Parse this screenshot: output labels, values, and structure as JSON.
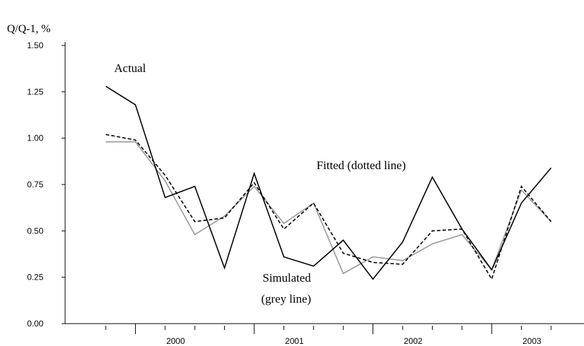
{
  "chart_data": {
    "type": "line",
    "y_label": "Q/Q-1, %",
    "categories": [
      null,
      null,
      "2000",
      null,
      null,
      null,
      "2001",
      null,
      null,
      null,
      "2002",
      null,
      null,
      null,
      "2003",
      null
    ],
    "series": [
      {
        "name": "Actual",
        "color": "#000000",
        "dash": "solid",
        "values": [
          1.28,
          1.18,
          0.68,
          0.74,
          0.3,
          0.81,
          0.36,
          0.31,
          0.45,
          0.24,
          0.44,
          0.79,
          0.51,
          0.29,
          0.65,
          0.84
        ]
      },
      {
        "name": "Fitted (dotted line)",
        "color": "#000000",
        "dash": "dashed",
        "values": [
          1.02,
          0.99,
          0.8,
          0.55,
          0.57,
          0.76,
          0.51,
          0.65,
          0.38,
          0.33,
          0.32,
          0.5,
          0.51,
          0.24,
          0.74,
          0.55
        ]
      },
      {
        "name": "Simulated",
        "color": "#999999",
        "dash": "solid",
        "values": [
          0.98,
          0.98,
          0.77,
          0.48,
          0.58,
          0.74,
          0.54,
          0.65,
          0.27,
          0.36,
          0.34,
          0.43,
          0.48,
          0.29,
          0.72,
          0.55
        ]
      }
    ],
    "annotation": "(grey line)",
    "ylim": [
      0,
      1.5
    ],
    "yticks": [
      {
        "value": 0,
        "label": "0.00"
      },
      {
        "value": 0.25,
        "label": "0.25"
      },
      {
        "value": 0.5,
        "label": "0.50"
      },
      {
        "value": 0.75,
        "label": "0.75"
      },
      {
        "value": 1,
        "label": "1.00"
      },
      {
        "value": 1.25,
        "label": "1.25"
      },
      {
        "value": 1.5,
        "label": "1.50"
      }
    ],
    "grid": false
  }
}
